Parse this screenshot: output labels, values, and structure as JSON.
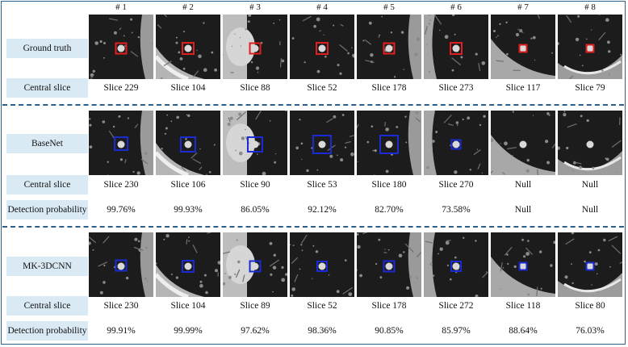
{
  "columns": [
    "# 1",
    "# 2",
    "# 3",
    "# 4",
    "# 5",
    "# 6",
    "# 7",
    "# 8"
  ],
  "colors": {
    "ground_truth_box": "#e02020",
    "prediction_box": "#1a2bd6",
    "label_bg": "#daeaf4",
    "divider": "#2c5f8a"
  },
  "sections": [
    {
      "method": "Ground truth",
      "box_color": "#e02020",
      "central_label": "Central slice",
      "central_slices": [
        "Slice 229",
        "Slice 104",
        "Slice 88",
        "Slice 52",
        "Slice 178",
        "Slice 273",
        "Slice 117",
        "Slice 79"
      ]
    },
    {
      "method": "BaseNet",
      "box_color": "#1a2bd6",
      "central_label": "Central slice",
      "central_slices": [
        "Slice 230",
        "Slice 106",
        "Slice 90",
        "Slice 53",
        "Slice 180",
        "Slice 270",
        "Null",
        "Null"
      ],
      "prob_label": "Detection probability",
      "probabilities": [
        "99.76%",
        "99.93%",
        "86.05%",
        "92.12%",
        "82.70%",
        "73.58%",
        "Null",
        "Null"
      ]
    },
    {
      "method": "MK-3DCNN",
      "box_color": "#1a2bd6",
      "central_label": "Central slice",
      "central_slices": [
        "Slice 230",
        "Slice 104",
        "Slice 89",
        "Slice 52",
        "Slice 178",
        "Slice 272",
        "Slice 118",
        "Slice 80"
      ],
      "prob_label": "Detection probability",
      "probabilities": [
        "99.91%",
        "99.99%",
        "97.62%",
        "98.36%",
        "90.85%",
        "85.97%",
        "88.64%",
        "76.03%"
      ]
    }
  ]
}
